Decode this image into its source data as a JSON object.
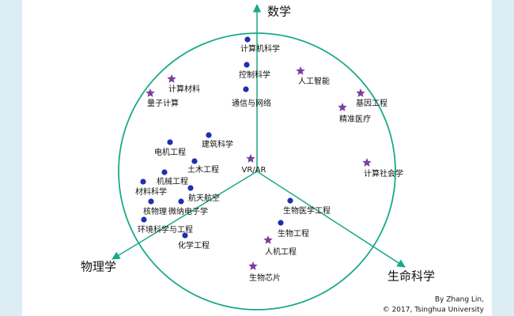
{
  "axes": [
    {
      "label": "数学"
    },
    {
      "label": "物理学"
    },
    {
      "label": "生命科学"
    }
  ],
  "nodes": [
    {
      "label": "计算机科学",
      "marker": "dot"
    },
    {
      "label": "控制科学",
      "marker": "dot"
    },
    {
      "label": "通信与网络",
      "marker": "dot"
    },
    {
      "label": "人工智能",
      "marker": "star"
    },
    {
      "label": "计算材料",
      "marker": "star"
    },
    {
      "label": "量子计算",
      "marker": "star"
    },
    {
      "label": "基因工程",
      "marker": "star"
    },
    {
      "label": "精准医疗",
      "marker": "star"
    },
    {
      "label": "建筑科学",
      "marker": "dot"
    },
    {
      "label": "电机工程",
      "marker": "dot"
    },
    {
      "label": "土木工程",
      "marker": "dot"
    },
    {
      "label": "VR/AR",
      "marker": "star"
    },
    {
      "label": "计算社会学",
      "marker": "star"
    },
    {
      "label": "机械工程",
      "marker": "dot"
    },
    {
      "label": "材料科学",
      "marker": "dot"
    },
    {
      "label": "航天航空",
      "marker": "dot"
    },
    {
      "label": "生物医学工程",
      "marker": "dot"
    },
    {
      "label": "核物理",
      "marker": "dot"
    },
    {
      "label": "微纳电子学",
      "marker": "dot"
    },
    {
      "label": "环境科学与工程",
      "marker": "dot"
    },
    {
      "label": "生物工程",
      "marker": "dot"
    },
    {
      "label": "化学工程",
      "marker": "dot"
    },
    {
      "label": "人机工程",
      "marker": "star"
    },
    {
      "label": "生物芯片",
      "marker": "star"
    }
  ],
  "credit": {
    "line1": "By Zhang Lin,",
    "line2": "© 2017, Tsinghua University"
  }
}
